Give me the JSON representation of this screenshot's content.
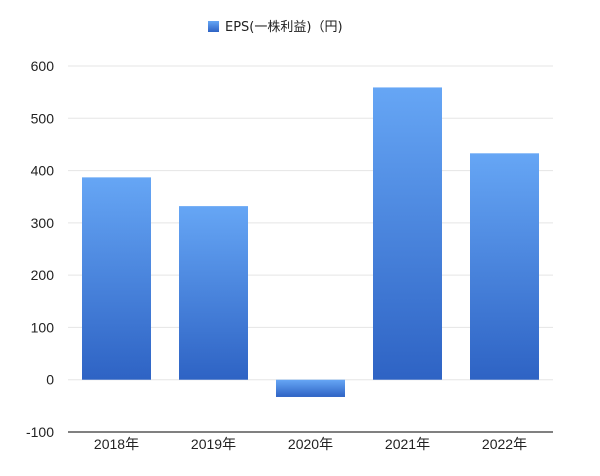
{
  "chart_data": {
    "type": "bar",
    "categories": [
      "2018年",
      "2019年",
      "2020年",
      "2021年",
      "2022年"
    ],
    "series": [
      {
        "name": "EPS(一株利益)（円)",
        "values": [
          387,
          332,
          -33,
          559,
          433
        ]
      }
    ],
    "ylim": [
      -100,
      600
    ],
    "yticks": [
      "-100",
      "0",
      "100",
      "200",
      "300",
      "400",
      "500",
      "600"
    ],
    "grid": true,
    "legend": "top-center",
    "colors": {
      "bar_top": "#66a6f5",
      "bar_bottom": "#2e63c4",
      "grid": "#e5e5e5",
      "axis": "#000000"
    }
  }
}
